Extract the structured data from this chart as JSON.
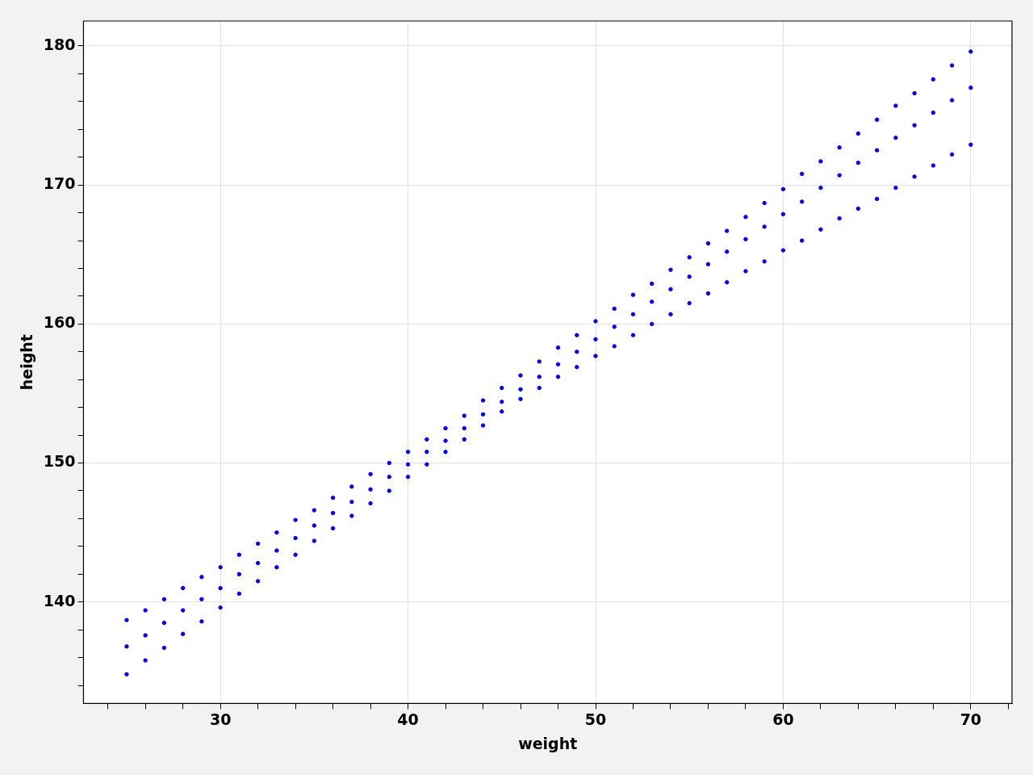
{
  "chart_data": {
    "type": "scatter",
    "xlabel": "weight",
    "ylabel": "height",
    "grid": true,
    "marker": "circle",
    "legend": false,
    "xlim": [
      22.7,
      72.2
    ],
    "ylim": [
      132.7,
      181.8
    ],
    "xticks": [
      {
        "value": 24,
        "label": null
      },
      {
        "value": 26,
        "label": null
      },
      {
        "value": 28,
        "label": null
      },
      30,
      {
        "value": 32,
        "label": null
      },
      {
        "value": 34,
        "label": null
      },
      {
        "value": 36,
        "label": null
      },
      {
        "value": 38,
        "label": null
      },
      40,
      {
        "value": 42,
        "label": null
      },
      {
        "value": 44,
        "label": null
      },
      {
        "value": 46,
        "label": null
      },
      {
        "value": 48,
        "label": null
      },
      50,
      {
        "value": 52,
        "label": null
      },
      {
        "value": 54,
        "label": null
      },
      {
        "value": 56,
        "label": null
      },
      {
        "value": 58,
        "label": null
      },
      60,
      {
        "value": 62,
        "label": null
      },
      {
        "value": 64,
        "label": null
      },
      {
        "value": 66,
        "label": null
      },
      {
        "value": 68,
        "label": null
      },
      70,
      {
        "value": 72,
        "label": null
      }
    ],
    "yticks": [
      {
        "value": 134,
        "label": null
      },
      {
        "value": 136,
        "label": null
      },
      {
        "value": 138,
        "label": null
      },
      140,
      {
        "value": 142,
        "label": null
      },
      {
        "value": 144,
        "label": null
      },
      {
        "value": 146,
        "label": null
      },
      {
        "value": 148,
        "label": null
      },
      150,
      {
        "value": 152,
        "label": null
      },
      {
        "value": 154,
        "label": null
      },
      {
        "value": 156,
        "label": null
      },
      {
        "value": 158,
        "label": null
      },
      160,
      {
        "value": 162,
        "label": null
      },
      {
        "value": 164,
        "label": null
      },
      {
        "value": 166,
        "label": null
      },
      {
        "value": 168,
        "label": null
      },
      170,
      {
        "value": 172,
        "label": null
      },
      {
        "value": 174,
        "label": null
      },
      {
        "value": 176,
        "label": null
      },
      {
        "value": 178,
        "label": null
      },
      180
    ],
    "series": [
      {
        "color": "#0000ff",
        "x": [
          25,
          25,
          25,
          26,
          26,
          26,
          27,
          27,
          27,
          28,
          28,
          28,
          29,
          29,
          29,
          30,
          30,
          30,
          31,
          31,
          31,
          32,
          32,
          32,
          33,
          33,
          33,
          34,
          34,
          34,
          35,
          35,
          35,
          36,
          36,
          36,
          37,
          37,
          37,
          38,
          38,
          38,
          39,
          39,
          39,
          40,
          40,
          40,
          41,
          41,
          41,
          42,
          42,
          42,
          43,
          43,
          43,
          44,
          44,
          44,
          45,
          45,
          45,
          46,
          46,
          46,
          47,
          47,
          47,
          48,
          48,
          48,
          49,
          49,
          49,
          50,
          50,
          50,
          51,
          51,
          51,
          52,
          52,
          52,
          53,
          53,
          53,
          54,
          54,
          54,
          55,
          55,
          55,
          56,
          56,
          56,
          57,
          57,
          57,
          58,
          58,
          58,
          59,
          59,
          59,
          60,
          60,
          60,
          61,
          61,
          61,
          62,
          62,
          62,
          63,
          63,
          63,
          64,
          64,
          64,
          65,
          65,
          65,
          66,
          66,
          66,
          67,
          67,
          67,
          68,
          68,
          68,
          69,
          69,
          69,
          70,
          70,
          70
        ],
        "values": [
          138.7,
          136.8,
          134.8,
          139.4,
          137.6,
          135.8,
          140.2,
          138.5,
          136.7,
          141.0,
          139.4,
          137.7,
          141.8,
          140.2,
          138.6,
          142.5,
          141.0,
          139.6,
          143.4,
          142.0,
          140.6,
          144.2,
          142.8,
          141.5,
          145.0,
          143.7,
          142.5,
          145.9,
          144.6,
          143.4,
          146.6,
          145.5,
          144.4,
          147.5,
          146.4,
          145.3,
          148.3,
          147.2,
          146.2,
          149.2,
          148.1,
          147.1,
          150.0,
          149.0,
          148.0,
          150.8,
          149.9,
          149.0,
          151.7,
          150.8,
          149.9,
          152.5,
          151.6,
          150.8,
          153.4,
          152.5,
          151.7,
          154.5,
          153.5,
          152.7,
          155.4,
          154.4,
          153.7,
          156.3,
          155.3,
          154.6,
          157.3,
          156.2,
          155.4,
          158.3,
          157.1,
          156.2,
          159.2,
          158.0,
          156.9,
          160.2,
          158.9,
          157.7,
          161.1,
          159.8,
          158.4,
          162.1,
          160.7,
          159.2,
          162.9,
          161.6,
          160.0,
          163.9,
          162.5,
          160.7,
          164.8,
          163.4,
          161.5,
          165.8,
          164.3,
          162.2,
          166.7,
          165.2,
          163.0,
          167.7,
          166.1,
          163.8,
          168.7,
          167.0,
          164.5,
          169.7,
          167.9,
          165.3,
          170.8,
          168.8,
          166.0,
          171.7,
          169.8,
          166.8,
          172.7,
          170.7,
          167.6,
          173.7,
          171.6,
          168.3,
          174.7,
          172.5,
          169.0,
          175.7,
          173.4,
          169.8,
          176.6,
          174.3,
          170.6,
          177.6,
          175.2,
          171.4,
          178.6,
          176.1,
          172.2,
          179.6,
          177.0,
          172.9
        ]
      }
    ]
  }
}
